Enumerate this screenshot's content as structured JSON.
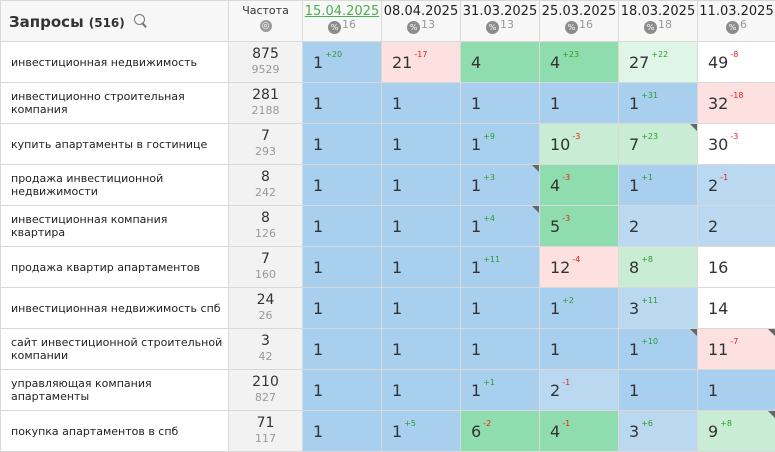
{
  "header": {
    "title": "Запросы",
    "count": "(516)",
    "freq_label": "Частота",
    "freq_icon": "globe-icon"
  },
  "dates": [
    {
      "date": "15.04.2025",
      "count": "16",
      "active": true
    },
    {
      "date": "08.04.2025",
      "count": "13",
      "active": false
    },
    {
      "date": "31.03.2025",
      "count": "13",
      "active": false
    },
    {
      "date": "25.03.2025",
      "count": "16",
      "active": false
    },
    {
      "date": "18.03.2025",
      "count": "18",
      "active": false
    },
    {
      "date": "11.03.2025",
      "count": "6",
      "active": false
    }
  ],
  "pct_symbol": "%",
  "rows": [
    {
      "query": "инвестиционная недвижимость",
      "freq": "875",
      "freq2": "9529",
      "cells": [
        {
          "v": "1",
          "d": "+20",
          "c": "blue"
        },
        {
          "v": "21",
          "d": "-17",
          "c": "pink"
        },
        {
          "v": "4",
          "d": "",
          "c": "green"
        },
        {
          "v": "4",
          "d": "+23",
          "c": "green"
        },
        {
          "v": "27",
          "d": "+22",
          "c": "palegreen"
        },
        {
          "v": "49",
          "d": "-8",
          "c": "white"
        }
      ]
    },
    {
      "query": "инвестиционно строительная компания",
      "freq": "281",
      "freq2": "2188",
      "cells": [
        {
          "v": "1",
          "d": "",
          "c": "blue"
        },
        {
          "v": "1",
          "d": "",
          "c": "blue"
        },
        {
          "v": "1",
          "d": "",
          "c": "blue"
        },
        {
          "v": "1",
          "d": "",
          "c": "blue"
        },
        {
          "v": "1",
          "d": "+31",
          "c": "blue"
        },
        {
          "v": "32",
          "d": "-18",
          "c": "pink"
        }
      ]
    },
    {
      "query": "купить апартаменты в гостинице",
      "freq": "7",
      "freq2": "293",
      "cells": [
        {
          "v": "1",
          "d": "",
          "c": "blue"
        },
        {
          "v": "1",
          "d": "",
          "c": "blue"
        },
        {
          "v": "1",
          "d": "+9",
          "c": "blue"
        },
        {
          "v": "10",
          "d": "-3",
          "c": "lightgreen"
        },
        {
          "v": "7",
          "d": "+23",
          "c": "lightgreen",
          "corner": true
        },
        {
          "v": "30",
          "d": "-3",
          "c": "white"
        }
      ]
    },
    {
      "query": "продажа инвестиционной недвижимости",
      "freq": "8",
      "freq2": "242",
      "cells": [
        {
          "v": "1",
          "d": "",
          "c": "blue"
        },
        {
          "v": "1",
          "d": "",
          "c": "blue"
        },
        {
          "v": "1",
          "d": "+3",
          "c": "blue",
          "corner": true
        },
        {
          "v": "4",
          "d": "-3",
          "c": "green"
        },
        {
          "v": "1",
          "d": "+1",
          "c": "blue"
        },
        {
          "v": "2",
          "d": "-1",
          "c": "lightblue"
        }
      ]
    },
    {
      "query": "инвестиционная компания квартира",
      "freq": "8",
      "freq2": "126",
      "cells": [
        {
          "v": "1",
          "d": "",
          "c": "blue"
        },
        {
          "v": "1",
          "d": "",
          "c": "blue"
        },
        {
          "v": "1",
          "d": "+4",
          "c": "blue",
          "corner": true
        },
        {
          "v": "5",
          "d": "-3",
          "c": "green"
        },
        {
          "v": "2",
          "d": "",
          "c": "lightblue"
        },
        {
          "v": "2",
          "d": "",
          "c": "lightblue"
        }
      ]
    },
    {
      "query": "продажа квартир апартаментов",
      "freq": "7",
      "freq2": "160",
      "cells": [
        {
          "v": "1",
          "d": "",
          "c": "blue"
        },
        {
          "v": "1",
          "d": "",
          "c": "blue"
        },
        {
          "v": "1",
          "d": "+11",
          "c": "blue"
        },
        {
          "v": "12",
          "d": "-4",
          "c": "pink"
        },
        {
          "v": "8",
          "d": "+8",
          "c": "lightgreen"
        },
        {
          "v": "16",
          "d": "",
          "c": "white"
        }
      ]
    },
    {
      "query": "инвестиционная недвижимость спб",
      "freq": "24",
      "freq2": "26",
      "cells": [
        {
          "v": "1",
          "d": "",
          "c": "blue"
        },
        {
          "v": "1",
          "d": "",
          "c": "blue"
        },
        {
          "v": "1",
          "d": "",
          "c": "blue"
        },
        {
          "v": "1",
          "d": "+2",
          "c": "blue"
        },
        {
          "v": "3",
          "d": "+11",
          "c": "lightblue"
        },
        {
          "v": "14",
          "d": "",
          "c": "white"
        }
      ]
    },
    {
      "query": "сайт инвестиционной строительной компании",
      "freq": "3",
      "freq2": "42",
      "cells": [
        {
          "v": "1",
          "d": "",
          "c": "blue"
        },
        {
          "v": "1",
          "d": "",
          "c": "blue"
        },
        {
          "v": "1",
          "d": "",
          "c": "blue"
        },
        {
          "v": "1",
          "d": "",
          "c": "blue"
        },
        {
          "v": "1",
          "d": "+10",
          "c": "blue",
          "corner": true
        },
        {
          "v": "11",
          "d": "-7",
          "c": "pink",
          "corner": true
        }
      ]
    },
    {
      "query": "управляющая компания апартаменты",
      "freq": "210",
      "freq2": "827",
      "cells": [
        {
          "v": "1",
          "d": "",
          "c": "blue"
        },
        {
          "v": "1",
          "d": "",
          "c": "blue"
        },
        {
          "v": "1",
          "d": "+1",
          "c": "blue"
        },
        {
          "v": "2",
          "d": "-1",
          "c": "lightblue"
        },
        {
          "v": "1",
          "d": "",
          "c": "blue"
        },
        {
          "v": "1",
          "d": "",
          "c": "blue"
        }
      ]
    },
    {
      "query": "покупка апартаментов в спб",
      "freq": "71",
      "freq2": "117",
      "cells": [
        {
          "v": "1",
          "d": "",
          "c": "blue"
        },
        {
          "v": "1",
          "d": "+5",
          "c": "blue"
        },
        {
          "v": "6",
          "d": "-2",
          "c": "green"
        },
        {
          "v": "4",
          "d": "-1",
          "c": "green"
        },
        {
          "v": "3",
          "d": "+6",
          "c": "lightblue"
        },
        {
          "v": "9",
          "d": "+8",
          "c": "lightgreen",
          "corner": true
        }
      ]
    }
  ]
}
